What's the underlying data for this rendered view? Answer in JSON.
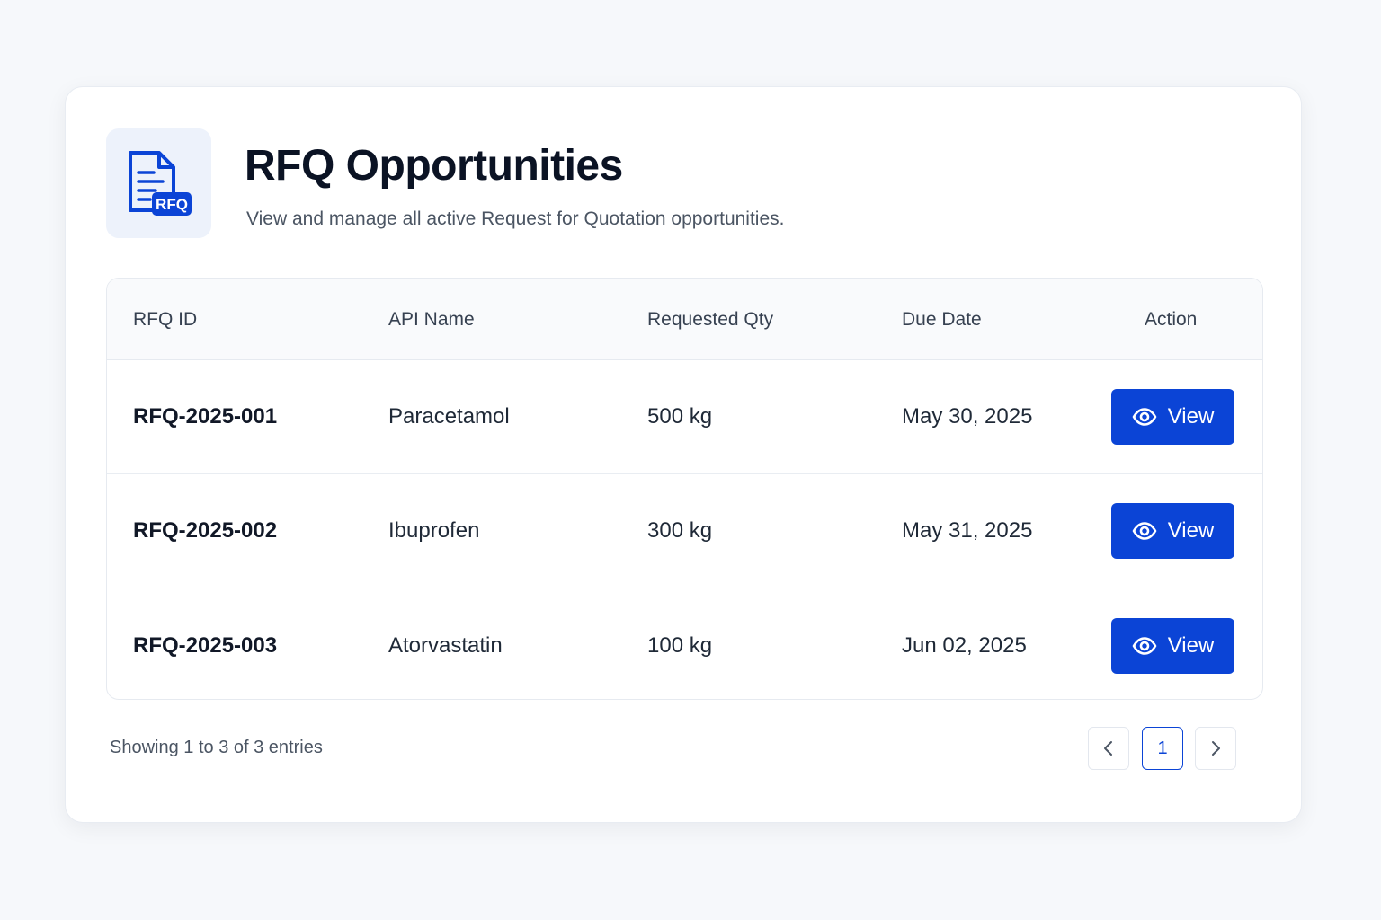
{
  "header": {
    "icon": "rfq-document-icon",
    "icon_badge": "RFQ",
    "title": "RFQ Opportunities",
    "subtitle": "View and manage all active Request for Quotation opportunities."
  },
  "table": {
    "columns": {
      "id": "RFQ ID",
      "api": "API Name",
      "qty": "Requested Qty",
      "due": "Due Date",
      "action": "Action"
    },
    "rows": [
      {
        "id": "RFQ-2025-001",
        "api": "Paracetamol",
        "qty": "500 kg",
        "due": "May 30, 2025",
        "action": "View"
      },
      {
        "id": "RFQ-2025-002",
        "api": "Ibuprofen",
        "qty": "300 kg",
        "due": "May 31, 2025",
        "action": "View"
      },
      {
        "id": "RFQ-2025-003",
        "api": "Atorvastatin",
        "qty": "100 kg",
        "due": "Jun 02, 2025",
        "action": "View"
      }
    ]
  },
  "footer": {
    "entries_text": "Showing 1 to 3 of 3 entries",
    "pagination": {
      "prev_icon": "chevron-left-icon",
      "current_page": "1",
      "next_icon": "chevron-right-icon"
    }
  },
  "colors": {
    "accent": "#0b44d6",
    "background": "#f6f8fb",
    "icon_box": "#edf2fb"
  }
}
